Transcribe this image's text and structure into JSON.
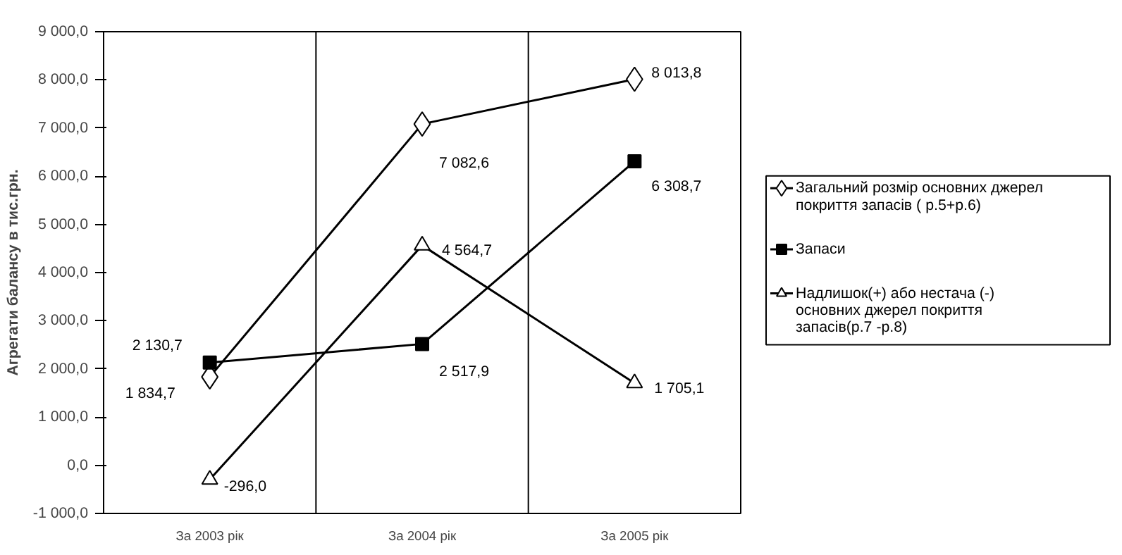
{
  "chart_data": {
    "type": "line",
    "ylabel": "Агрегати балансу в тис.грн.",
    "categories": [
      "За 2003 рік",
      "За 2004 рік",
      "За 2005 рік"
    ],
    "ylim": [
      -1000,
      9000
    ],
    "yticks": [
      {
        "value": -1000,
        "label": "-1 000,0"
      },
      {
        "value": 0,
        "label": "0,0"
      },
      {
        "value": 1000,
        "label": "1 000,0"
      },
      {
        "value": 2000,
        "label": "2 000,0"
      },
      {
        "value": 3000,
        "label": "3 000,0"
      },
      {
        "value": 4000,
        "label": "4 000,0"
      },
      {
        "value": 5000,
        "label": "5 000,0"
      },
      {
        "value": 6000,
        "label": "6 000,0"
      },
      {
        "value": 7000,
        "label": "7 000,0"
      },
      {
        "value": 8000,
        "label": "8 000,0"
      },
      {
        "value": 9000,
        "label": "9 000,0"
      }
    ],
    "grid": "x",
    "legend": "right",
    "line_style": "solid",
    "series": [
      {
        "name": "Загальний розмір основних джерел покриття запасів ( р.5+р.6)",
        "color": "#000000",
        "marker": "diamond",
        "values": [
          1834.7,
          7082.6,
          8013.8
        ],
        "value_labels": [
          "1 834,7",
          "7 082,6",
          "8 013,8"
        ]
      },
      {
        "name": "Запаси",
        "color": "#000000",
        "marker": "square",
        "values": [
          2130.7,
          2517.9,
          6308.7
        ],
        "value_labels": [
          "2 130,7",
          "2 517,9",
          "6 308,7"
        ]
      },
      {
        "name": "Надлишок(+) або нестача (-) основних джерел покриття запасів(р.7 -р.8)",
        "color": "#000000",
        "marker": "triangle",
        "values": [
          -296.0,
          4564.7,
          1705.1
        ],
        "value_labels": [
          "-296,0",
          "4 564,7",
          "1 705,1"
        ]
      }
    ]
  }
}
